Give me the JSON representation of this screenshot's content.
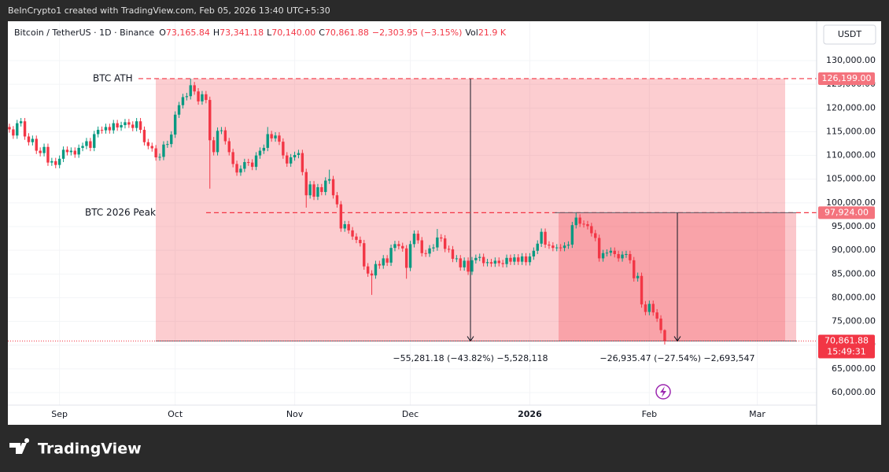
{
  "header": {
    "credit": "BeInCrypto1 created with TradingView.com, Feb 05, 2026 13:40 UTC+5:30",
    "symbol": "Bitcoin / TetherUS · 1D · Binance",
    "legend": [
      {
        "key": "O",
        "text": "73,165.84"
      },
      {
        "key": "H",
        "text": "73,341.18"
      },
      {
        "key": "L",
        "text": "70,140.00"
      },
      {
        "key": "C",
        "text": "70,861.88"
      }
    ],
    "change": "−2,303.95 (−3.15%)",
    "volume_key": "Vol",
    "volume": "21.9 K",
    "currency": "USDT"
  },
  "footer": {
    "brand": "TradingView"
  },
  "chart_data": {
    "type": "candlestick",
    "up_color": "#089981",
    "down_color": "#f23645",
    "grid": true,
    "open": [
      116000,
      115500,
      114200,
      116800,
      117200,
      114000,
      112800,
      113500,
      111000,
      110500,
      111800,
      108500,
      108800,
      108000,
      109300,
      111200,
      110700,
      111000,
      110200,
      111600,
      112000,
      113000,
      111600,
      114500,
      115400,
      115300,
      116000,
      115300,
      116800,
      115900,
      116400,
      117000,
      116500,
      115800,
      117200,
      115400,
      112800,
      112000,
      111500,
      109600,
      109700,
      112300,
      112400,
      114400,
      118600,
      120600,
      122300,
      122500,
      124800,
      123500,
      121400,
      122900,
      121700,
      113200,
      110700,
      115200,
      115300,
      113000,
      110700,
      108200,
      106400,
      107200,
      108600,
      108500,
      107600,
      110000,
      111000,
      111600,
      114500,
      113600,
      114200,
      112900,
      110000,
      108300,
      109600,
      110100,
      110500,
      106500,
      101600,
      103900,
      101300,
      103300,
      102300,
      104700,
      105000,
      101600,
      99700,
      94600,
      95500,
      94200,
      92900,
      92200,
      91500,
      86600,
      85100,
      84700,
      87100,
      86800,
      88300,
      87400,
      90500,
      91300,
      90900,
      90400,
      86300,
      91300,
      93500,
      92100,
      89400,
      89300,
      90400,
      90600,
      92700,
      92500,
      90300,
      90200,
      88200,
      88300,
      86400,
      87800,
      85500,
      87900,
      88400,
      88600,
      87300,
      87500,
      87200,
      87800,
      87300,
      87100,
      88400,
      87600,
      88500,
      87600,
      88700,
      87500,
      88700,
      89900,
      91400,
      93900,
      91200,
      91000,
      90500,
      90600,
      90500,
      91000,
      91200,
      95300,
      96900,
      95600,
      95500,
      95100,
      93600,
      92600,
      88300,
      89400,
      89500,
      89900,
      89200,
      88300,
      89100,
      89200,
      87900,
      84100,
      84600,
      78600,
      77000,
      78700,
      76900,
      75600,
      73165.84
    ],
    "high": [
      116700,
      116200,
      117500,
      117900,
      117900,
      114700,
      114200,
      114200,
      111700,
      112500,
      112500,
      109500,
      109500,
      110000,
      111900,
      111900,
      111700,
      111700,
      112300,
      112700,
      113700,
      113700,
      115200,
      116100,
      116100,
      116700,
      116700,
      117500,
      117500,
      117100,
      117700,
      117700,
      117200,
      117900,
      117900,
      116100,
      113500,
      112700,
      112200,
      110400,
      113000,
      113100,
      115100,
      119300,
      121300,
      123000,
      123200,
      126200,
      125500,
      124200,
      123600,
      123600,
      122400,
      113900,
      115900,
      116000,
      116000,
      113700,
      111400,
      108900,
      107900,
      109300,
      109300,
      109200,
      110700,
      111700,
      112300,
      116000,
      115200,
      114900,
      114900,
      113600,
      110700,
      110300,
      110800,
      111200,
      111200,
      107200,
      104600,
      104600,
      104000,
      104000,
      105400,
      107000,
      105700,
      102300,
      100400,
      96200,
      96200,
      94900,
      93600,
      92900,
      92200,
      87300,
      85800,
      87800,
      87800,
      89000,
      89000,
      91200,
      92000,
      92000,
      91600,
      91100,
      92000,
      94200,
      94200,
      92800,
      90100,
      91100,
      91300,
      94500,
      93400,
      93200,
      91000,
      90900,
      89000,
      89000,
      88500,
      88500,
      88600,
      89100,
      89300,
      89300,
      88200,
      88200,
      88500,
      88500,
      88000,
      89100,
      89100,
      89200,
      89200,
      89400,
      89400,
      89400,
      90600,
      92100,
      94600,
      94600,
      91900,
      91700,
      91300,
      91300,
      91700,
      91900,
      96000,
      97900,
      97600,
      96300,
      96200,
      95800,
      94300,
      93300,
      90100,
      90200,
      90600,
      90600,
      89900,
      89800,
      89900,
      89900,
      88600,
      85300,
      85300,
      79300,
      79400,
      79400,
      77600,
      76300,
      73341.18
    ],
    "low": [
      114800,
      113500,
      113500,
      116100,
      113300,
      112100,
      112100,
      110300,
      109800,
      109800,
      107800,
      107800,
      107300,
      107300,
      108600,
      110000,
      110000,
      109500,
      109500,
      110900,
      111300,
      110900,
      110900,
      113800,
      114600,
      114600,
      114600,
      114600,
      115200,
      115200,
      115700,
      115800,
      115100,
      115100,
      114700,
      112100,
      111300,
      110800,
      108900,
      108900,
      109000,
      111600,
      111700,
      113700,
      117900,
      119900,
      121600,
      121800,
      122800,
      120700,
      120700,
      121000,
      103000,
      110000,
      110000,
      114500,
      112300,
      110000,
      107500,
      105700,
      105700,
      106500,
      107800,
      106900,
      106900,
      109300,
      110300,
      110900,
      112900,
      112900,
      112200,
      109300,
      107600,
      107600,
      108900,
      109400,
      105800,
      99000,
      100900,
      100600,
      100600,
      101600,
      101600,
      104000,
      100900,
      99000,
      93900,
      93900,
      93500,
      92200,
      91500,
      90800,
      85900,
      84400,
      80600,
      84000,
      86100,
      86100,
      86700,
      86700,
      89800,
      90200,
      89700,
      84000,
      85600,
      90600,
      91400,
      88700,
      88600,
      88600,
      89700,
      89900,
      91800,
      89600,
      89500,
      87500,
      87500,
      85700,
      85700,
      84800,
      84800,
      87200,
      87700,
      86600,
      86600,
      86500,
      86500,
      86600,
      86400,
      86400,
      86900,
      86900,
      86900,
      86900,
      86800,
      86800,
      88000,
      89200,
      90700,
      90500,
      90300,
      89800,
      89800,
      89800,
      89800,
      90300,
      90500,
      94600,
      94900,
      94800,
      94400,
      92900,
      91900,
      87600,
      87600,
      88700,
      88800,
      88500,
      87600,
      87600,
      88400,
      87200,
      83400,
      83400,
      77900,
      76300,
      76300,
      76200,
      74900,
      72500,
      70140
    ],
    "close": [
      115500,
      114200,
      116800,
      117200,
      114000,
      112800,
      113500,
      111000,
      110500,
      111800,
      108500,
      108800,
      108000,
      109300,
      111200,
      110700,
      111000,
      110200,
      111600,
      112000,
      113000,
      111600,
      114500,
      115400,
      115300,
      116000,
      115300,
      116800,
      115900,
      116400,
      117000,
      116500,
      115800,
      117200,
      115400,
      112800,
      112000,
      111500,
      109600,
      109700,
      112300,
      112400,
      114400,
      118600,
      120600,
      122300,
      122500,
      124800,
      123500,
      121400,
      122900,
      121700,
      113200,
      110700,
      115200,
      115300,
      113000,
      110700,
      108200,
      106400,
      107200,
      108600,
      108500,
      107600,
      110000,
      111000,
      111600,
      114500,
      113600,
      114200,
      112900,
      110000,
      108300,
      109600,
      110100,
      110500,
      106500,
      101600,
      103900,
      101300,
      103300,
      102300,
      104700,
      105000,
      101600,
      99700,
      94600,
      95500,
      94200,
      92900,
      92200,
      91500,
      86600,
      85100,
      84700,
      87100,
      86800,
      88300,
      87400,
      90500,
      91300,
      90900,
      90400,
      86300,
      91300,
      93500,
      92100,
      89400,
      89300,
      90400,
      90600,
      92700,
      92500,
      90300,
      90200,
      88200,
      88300,
      86400,
      87800,
      85500,
      87900,
      88400,
      88600,
      87300,
      87500,
      87200,
      87800,
      87300,
      87100,
      88400,
      87600,
      88500,
      87600,
      88700,
      87500,
      88700,
      89900,
      91400,
      93900,
      91200,
      91000,
      90500,
      90600,
      90500,
      91000,
      91200,
      95300,
      96900,
      95600,
      95500,
      95100,
      93600,
      92600,
      88300,
      89400,
      89500,
      89900,
      89200,
      88300,
      89100,
      89200,
      87900,
      84100,
      84600,
      78600,
      77000,
      78700,
      76900,
      75600,
      73165.84,
      70861.88
    ],
    "xlim": [
      -0.4,
      209.4
    ],
    "xticks": [
      {
        "value": 13,
        "label": "Sep"
      },
      {
        "value": 43,
        "label": "Oct"
      },
      {
        "value": 74,
        "label": "Nov"
      },
      {
        "value": 104,
        "label": "Dec"
      },
      {
        "value": 135,
        "label": "2026"
      },
      {
        "value": 166,
        "label": "Feb"
      },
      {
        "value": 194,
        "label": "Mar"
      }
    ],
    "ylim": [
      57350,
      138300
    ],
    "yticks": [
      {
        "value": 60000,
        "label": "60,000.00"
      },
      {
        "value": 65000,
        "label": "65,000.00"
      },
      {
        "value": 70000,
        "label": "70,000.00"
      },
      {
        "value": 75000,
        "label": "75,000.00"
      },
      {
        "value": 80000,
        "label": "80,000.00"
      },
      {
        "value": 85000,
        "label": "85,000.00"
      },
      {
        "value": 90000,
        "label": "90,000.00"
      },
      {
        "value": 95000,
        "label": "95,000.00"
      },
      {
        "value": 100000,
        "label": "100,000.00"
      },
      {
        "value": 105000,
        "label": "105,000.00"
      },
      {
        "value": 110000,
        "label": "110,000.00"
      },
      {
        "value": 115000,
        "label": "115,000.00"
      },
      {
        "value": 120000,
        "label": "120,000.00"
      },
      {
        "value": 125000,
        "label": "125,000.00"
      },
      {
        "value": 130000,
        "label": "130,000.00"
      }
    ],
    "levels": [
      {
        "name": "BTC ATH",
        "value": 126199,
        "label": "126,199.00"
      },
      {
        "name": "BTC 2026 Peak",
        "value": 97924,
        "label": "97,924.00"
      }
    ],
    "measures": [
      "−55,281.18 (−43.82%) −5,528,118",
      "−26,935.47 (−27.54%) −2,693,547"
    ],
    "current_price": {
      "label": "70,861.88",
      "countdown": "15:49:31"
    }
  }
}
